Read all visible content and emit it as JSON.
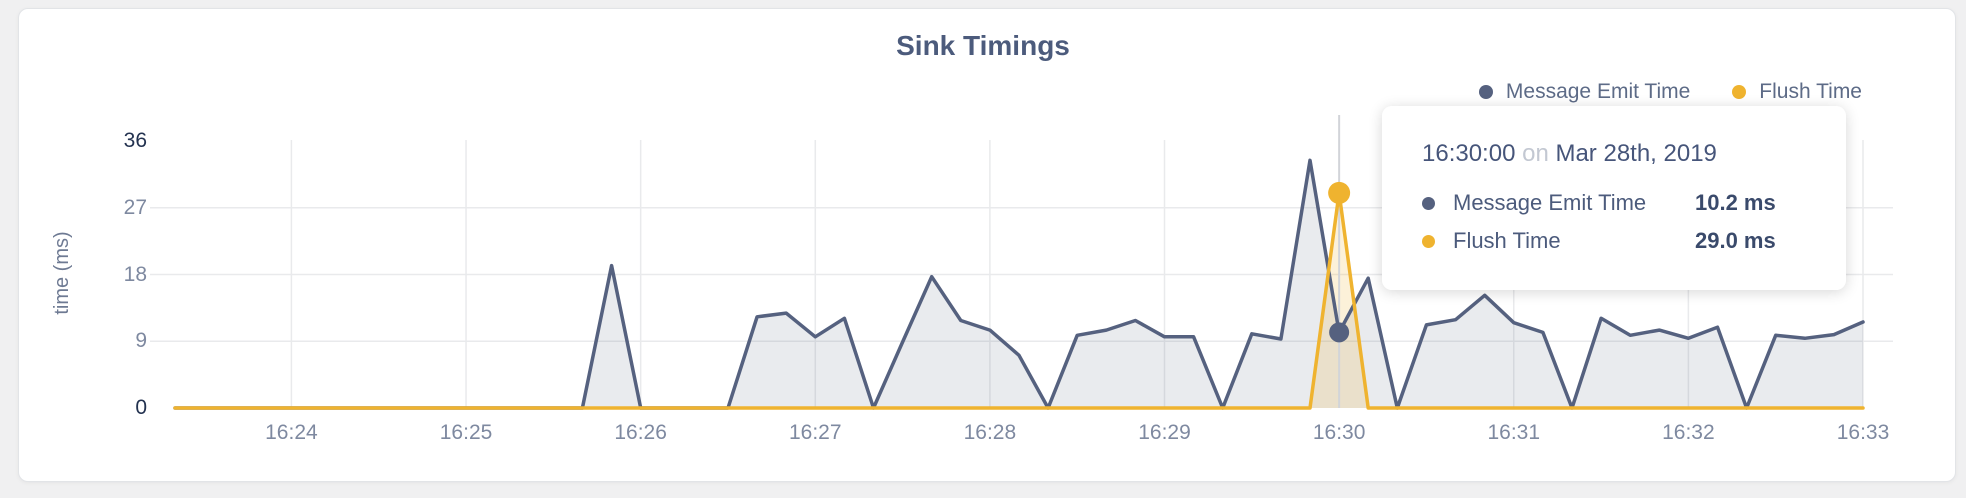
{
  "chart": {
    "title": "Sink Timings",
    "y_axis_title": "time (ms)",
    "legend": [
      {
        "label": "Message Emit Time",
        "color": "#55617f"
      },
      {
        "label": "Flush Time",
        "color": "#efb32f"
      }
    ]
  },
  "tooltip": {
    "time": "16:30:00",
    "connector": "on",
    "date": "Mar 28th, 2019",
    "rows": [
      {
        "label": "Message Emit Time",
        "value": "10.2 ms",
        "color": "#55617f"
      },
      {
        "label": "Flush Time",
        "value": "29.0 ms",
        "color": "#efb32f"
      }
    ]
  },
  "colors": {
    "grid": "#e9eaec",
    "crosshair": "#d2d4d9",
    "axis_text": "#7e89a0",
    "axis_text_strong": "#233250",
    "title": "#4c5b7c",
    "series_primary": "#55617f",
    "series_secondary": "#efb32f",
    "page_bg": "#f0f0f1",
    "card_border": "#e2e4e7"
  },
  "chart_data": {
    "type": "area",
    "title": "Sink Timings",
    "xlabel": "",
    "ylabel": "time (ms)",
    "ylim": [
      0,
      36
    ],
    "y_ticks": [
      36,
      27,
      18,
      9,
      0
    ],
    "y_ticks_strong": [
      36,
      0
    ],
    "x_tick_labels": [
      "16:24",
      "16:25",
      "16:26",
      "16:27",
      "16:28",
      "16:29",
      "16:30",
      "16:31",
      "16:32",
      "16:33"
    ],
    "x_interval_seconds": 10,
    "x": [
      "16:23:20",
      "16:23:30",
      "16:23:40",
      "16:23:50",
      "16:24:00",
      "16:24:10",
      "16:24:20",
      "16:24:30",
      "16:24:40",
      "16:24:50",
      "16:25:00",
      "16:25:10",
      "16:25:20",
      "16:25:30",
      "16:25:40",
      "16:25:50",
      "16:26:00",
      "16:26:10",
      "16:26:20",
      "16:26:30",
      "16:26:40",
      "16:26:50",
      "16:27:00",
      "16:27:10",
      "16:27:20",
      "16:27:30",
      "16:27:40",
      "16:27:50",
      "16:28:00",
      "16:28:10",
      "16:28:20",
      "16:28:30",
      "16:28:40",
      "16:28:50",
      "16:29:00",
      "16:29:10",
      "16:29:20",
      "16:29:30",
      "16:29:40",
      "16:29:50",
      "16:30:00",
      "16:30:10",
      "16:30:20",
      "16:30:30",
      "16:30:40",
      "16:30:50",
      "16:31:00",
      "16:31:10",
      "16:31:20",
      "16:31:30",
      "16:31:40",
      "16:31:50",
      "16:32:00",
      "16:32:10",
      "16:32:20",
      "16:32:30",
      "16:32:40",
      "16:32:50",
      "16:33:00"
    ],
    "series": [
      {
        "name": "Message Emit Time",
        "color": "#55617f",
        "fill": "rgba(85,97,127,0.13)",
        "line_width": 3.5,
        "dot_radius": 10,
        "values": [
          0,
          0,
          0,
          0,
          0,
          0,
          0,
          0,
          0,
          0,
          0,
          0,
          0,
          0,
          0,
          19.2,
          0,
          0,
          0,
          0,
          12.3,
          12.8,
          9.6,
          12.1,
          0,
          8.9,
          17.7,
          11.8,
          10.5,
          7.1,
          0,
          9.8,
          10.5,
          11.8,
          9.6,
          9.6,
          0,
          10.0,
          9.3,
          33.4,
          10.2,
          17.5,
          0,
          11.2,
          11.9,
          15.2,
          11.5,
          10.2,
          0,
          12.1,
          9.8,
          10.5,
          9.4,
          10.9,
          0,
          9.8,
          9.4,
          9.9,
          11.6
        ]
      },
      {
        "name": "Flush Time",
        "color": "#efb32f",
        "fill": "rgba(239,179,47,0.18)",
        "line_width": 3.5,
        "dot_radius": 11,
        "values": [
          0,
          0,
          0,
          0,
          0,
          0,
          0,
          0,
          0,
          0,
          0,
          0,
          0,
          0,
          0,
          0,
          0,
          0,
          0,
          0,
          0,
          0,
          0,
          0,
          0,
          0,
          0,
          0,
          0,
          0,
          0,
          0,
          0,
          0,
          0,
          0,
          0,
          0,
          0,
          0,
          29.0,
          0,
          0,
          0,
          0,
          0,
          0,
          0,
          0,
          0,
          0,
          0,
          0,
          0,
          0,
          0,
          0,
          0,
          0
        ]
      }
    ],
    "hover": {
      "x": "16:30:00",
      "values": [
        10.2,
        29.0
      ]
    },
    "legend_position": "top-right",
    "grid": true
  }
}
